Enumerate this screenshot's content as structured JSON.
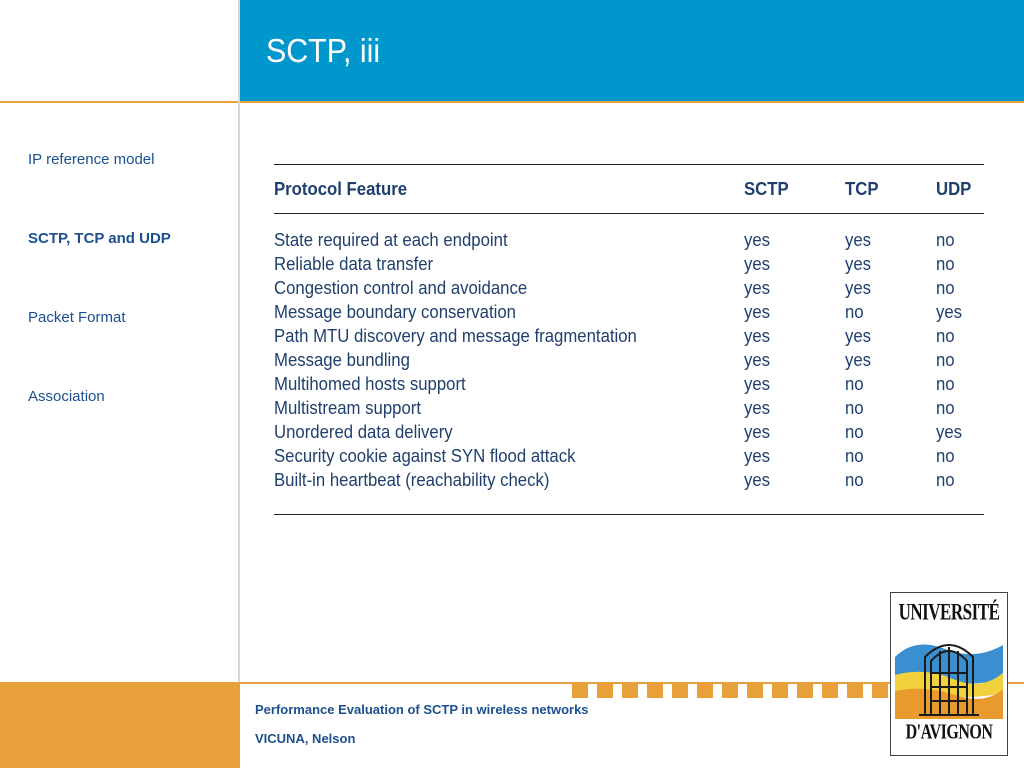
{
  "header": {
    "title": "SCTP, iii"
  },
  "sidebar": {
    "items": [
      {
        "label": "IP reference model",
        "active": false
      },
      {
        "label": "SCTP, TCP and UDP",
        "active": true
      },
      {
        "label": "Packet Format",
        "active": false
      },
      {
        "label": "Association",
        "active": false
      }
    ]
  },
  "table": {
    "headers": [
      "Protocol Feature",
      "SCTP",
      "TCP",
      "UDP"
    ],
    "rows": [
      [
        "State required at each endpoint",
        "yes",
        "yes",
        "no"
      ],
      [
        "Reliable data transfer",
        "yes",
        "yes",
        "no"
      ],
      [
        "Congestion control and avoidance",
        "yes",
        "yes",
        "no"
      ],
      [
        "Message boundary conservation",
        "yes",
        "no",
        "yes"
      ],
      [
        "Path MTU discovery and message fragmentation",
        "yes",
        "yes",
        "no"
      ],
      [
        "Message bundling",
        "yes",
        "yes",
        "no"
      ],
      [
        "Multihomed hosts support",
        "yes",
        "no",
        "no"
      ],
      [
        "Multistream support",
        "yes",
        "no",
        "no"
      ],
      [
        "Unordered data delivery",
        "yes",
        "no",
        "yes"
      ],
      [
        "Security cookie against SYN flood attack",
        "yes",
        "no",
        "no"
      ],
      [
        "Built-in heartbeat (reachability check)",
        "yes",
        "no",
        "no"
      ]
    ]
  },
  "footer": {
    "title": "Performance Evaluation of SCTP in wireless networks",
    "author": "VICUNA, Nelson"
  },
  "logo": {
    "top_text": "UNIVERSITÉ",
    "bottom_text": "D'AVIGNON"
  },
  "colors": {
    "header_blue": "#0097cc",
    "accent_orange": "#e8a03a",
    "text_navy": "#1f3f6e"
  }
}
